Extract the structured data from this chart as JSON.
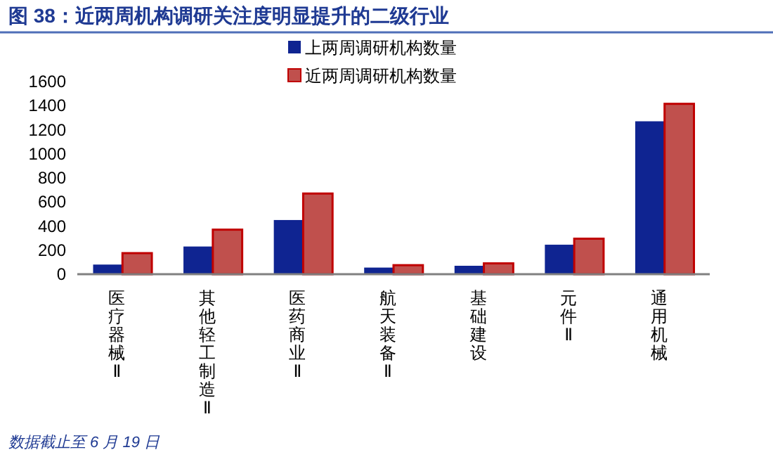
{
  "chart_data": {
    "type": "bar",
    "title": "图 38：近两周机构调研关注度明显提升的二级行业",
    "categories": [
      "医疗器械Ⅱ",
      "其他轻工制造Ⅱ",
      "医药商业Ⅱ",
      "航天装备Ⅱ",
      "基础建设",
      "元件Ⅱ",
      "通用机械"
    ],
    "series": [
      {
        "name": "上两周调研机构数量",
        "color": "#0f2491",
        "values": [
          80,
          230,
          450,
          55,
          70,
          245,
          1270
        ]
      },
      {
        "name": "近两周调研机构数量",
        "color": "#c0504d",
        "values": [
          175,
          370,
          670,
          75,
          90,
          295,
          1415
        ]
      }
    ],
    "ylim": [
      0,
      1600
    ],
    "yticks": [
      0,
      200,
      400,
      600,
      800,
      1000,
      1200,
      1400,
      1600
    ],
    "legend": "top",
    "annotations": [
      "数据截止至 6 月 19 日"
    ]
  }
}
